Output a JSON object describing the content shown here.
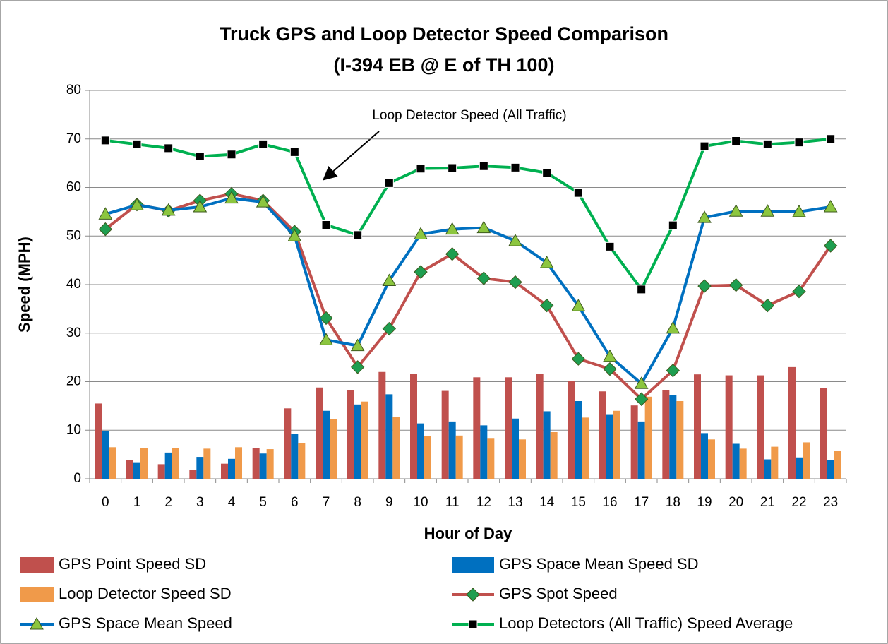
{
  "chart_data": {
    "type": "bar-line",
    "title": "Truck GPS and Loop Detector Speed Comparison",
    "subtitle": "(I-394 EB @ E of TH 100)",
    "x_label": "Hour of Day",
    "y_label": "Speed (MPH)",
    "annotation": "Loop Detector Speed (All Traffic)",
    "categories": [
      "0",
      "1",
      "2",
      "3",
      "4",
      "5",
      "6",
      "7",
      "8",
      "9",
      "10",
      "11",
      "12",
      "13",
      "14",
      "15",
      "16",
      "17",
      "18",
      "19",
      "20",
      "21",
      "22",
      "23"
    ],
    "ylim": [
      0,
      80
    ],
    "yticks": [
      0,
      10,
      20,
      30,
      40,
      50,
      60,
      70,
      80
    ],
    "grid": true,
    "series": [
      {
        "name": "GPS Point Speed SD",
        "type": "bar",
        "color": "#c0504d",
        "values": [
          15.5,
          3.8,
          3.0,
          1.8,
          3.1,
          6.3,
          14.5,
          18.8,
          18.3,
          22.0,
          21.6,
          18.1,
          20.9,
          20.9,
          21.6,
          20.1,
          18.0,
          15.1,
          18.3,
          21.5,
          21.3,
          21.3,
          23.0,
          18.7
        ]
      },
      {
        "name": "GPS Space Mean Speed SD",
        "type": "bar",
        "color": "#0070c0",
        "values": [
          9.8,
          3.4,
          5.4,
          4.5,
          4.1,
          5.2,
          9.2,
          14.0,
          15.3,
          17.4,
          11.4,
          11.8,
          11.0,
          12.4,
          13.9,
          16.0,
          13.3,
          11.8,
          17.2,
          9.4,
          7.2,
          4.0,
          4.4,
          3.9
        ]
      },
      {
        "name": "Loop Detector Speed SD",
        "type": "bar",
        "color": "#f09a4a",
        "values": [
          6.5,
          6.4,
          6.3,
          6.2,
          6.5,
          6.1,
          7.4,
          12.3,
          15.9,
          12.7,
          8.8,
          8.9,
          8.4,
          8.1,
          9.6,
          12.6,
          14.0,
          16.9,
          16.0,
          8.1,
          6.2,
          6.6,
          7.5,
          5.8
        ]
      },
      {
        "name": "GPS Spot Speed",
        "type": "line",
        "color": "#c0504d",
        "marker": "diamond",
        "marker_color": "#1e9e50",
        "values": [
          51.4,
          56.5,
          55.2,
          57.3,
          58.7,
          57.3,
          50.9,
          33.1,
          23.0,
          30.9,
          42.6,
          46.3,
          41.3,
          40.5,
          35.7,
          24.7,
          22.6,
          16.4,
          22.3,
          39.7,
          39.9,
          35.7,
          38.6,
          48.0
        ]
      },
      {
        "name": "GPS Space Mean Speed",
        "type": "line",
        "color": "#0070c0",
        "marker": "triangle",
        "marker_color": "#8cc63f",
        "values": [
          54.5,
          56.4,
          55.3,
          56.0,
          57.8,
          57.0,
          50.0,
          28.6,
          27.4,
          40.8,
          50.4,
          51.4,
          51.7,
          49.0,
          44.5,
          35.6,
          25.2,
          19.6,
          31.0,
          53.8,
          55.1,
          55.1,
          55.0,
          56.0
        ]
      },
      {
        "name": "Loop Detectors (All Traffic) Speed Average",
        "type": "line",
        "color": "#00b050",
        "marker": "square",
        "marker_color": "#000000",
        "values": [
          69.7,
          68.9,
          68.1,
          66.4,
          66.8,
          68.9,
          67.3,
          52.3,
          50.2,
          60.9,
          63.9,
          64.0,
          64.4,
          64.1,
          63.0,
          58.9,
          47.8,
          39.0,
          52.2,
          68.5,
          69.6,
          68.9,
          69.3,
          70.0
        ]
      }
    ]
  }
}
